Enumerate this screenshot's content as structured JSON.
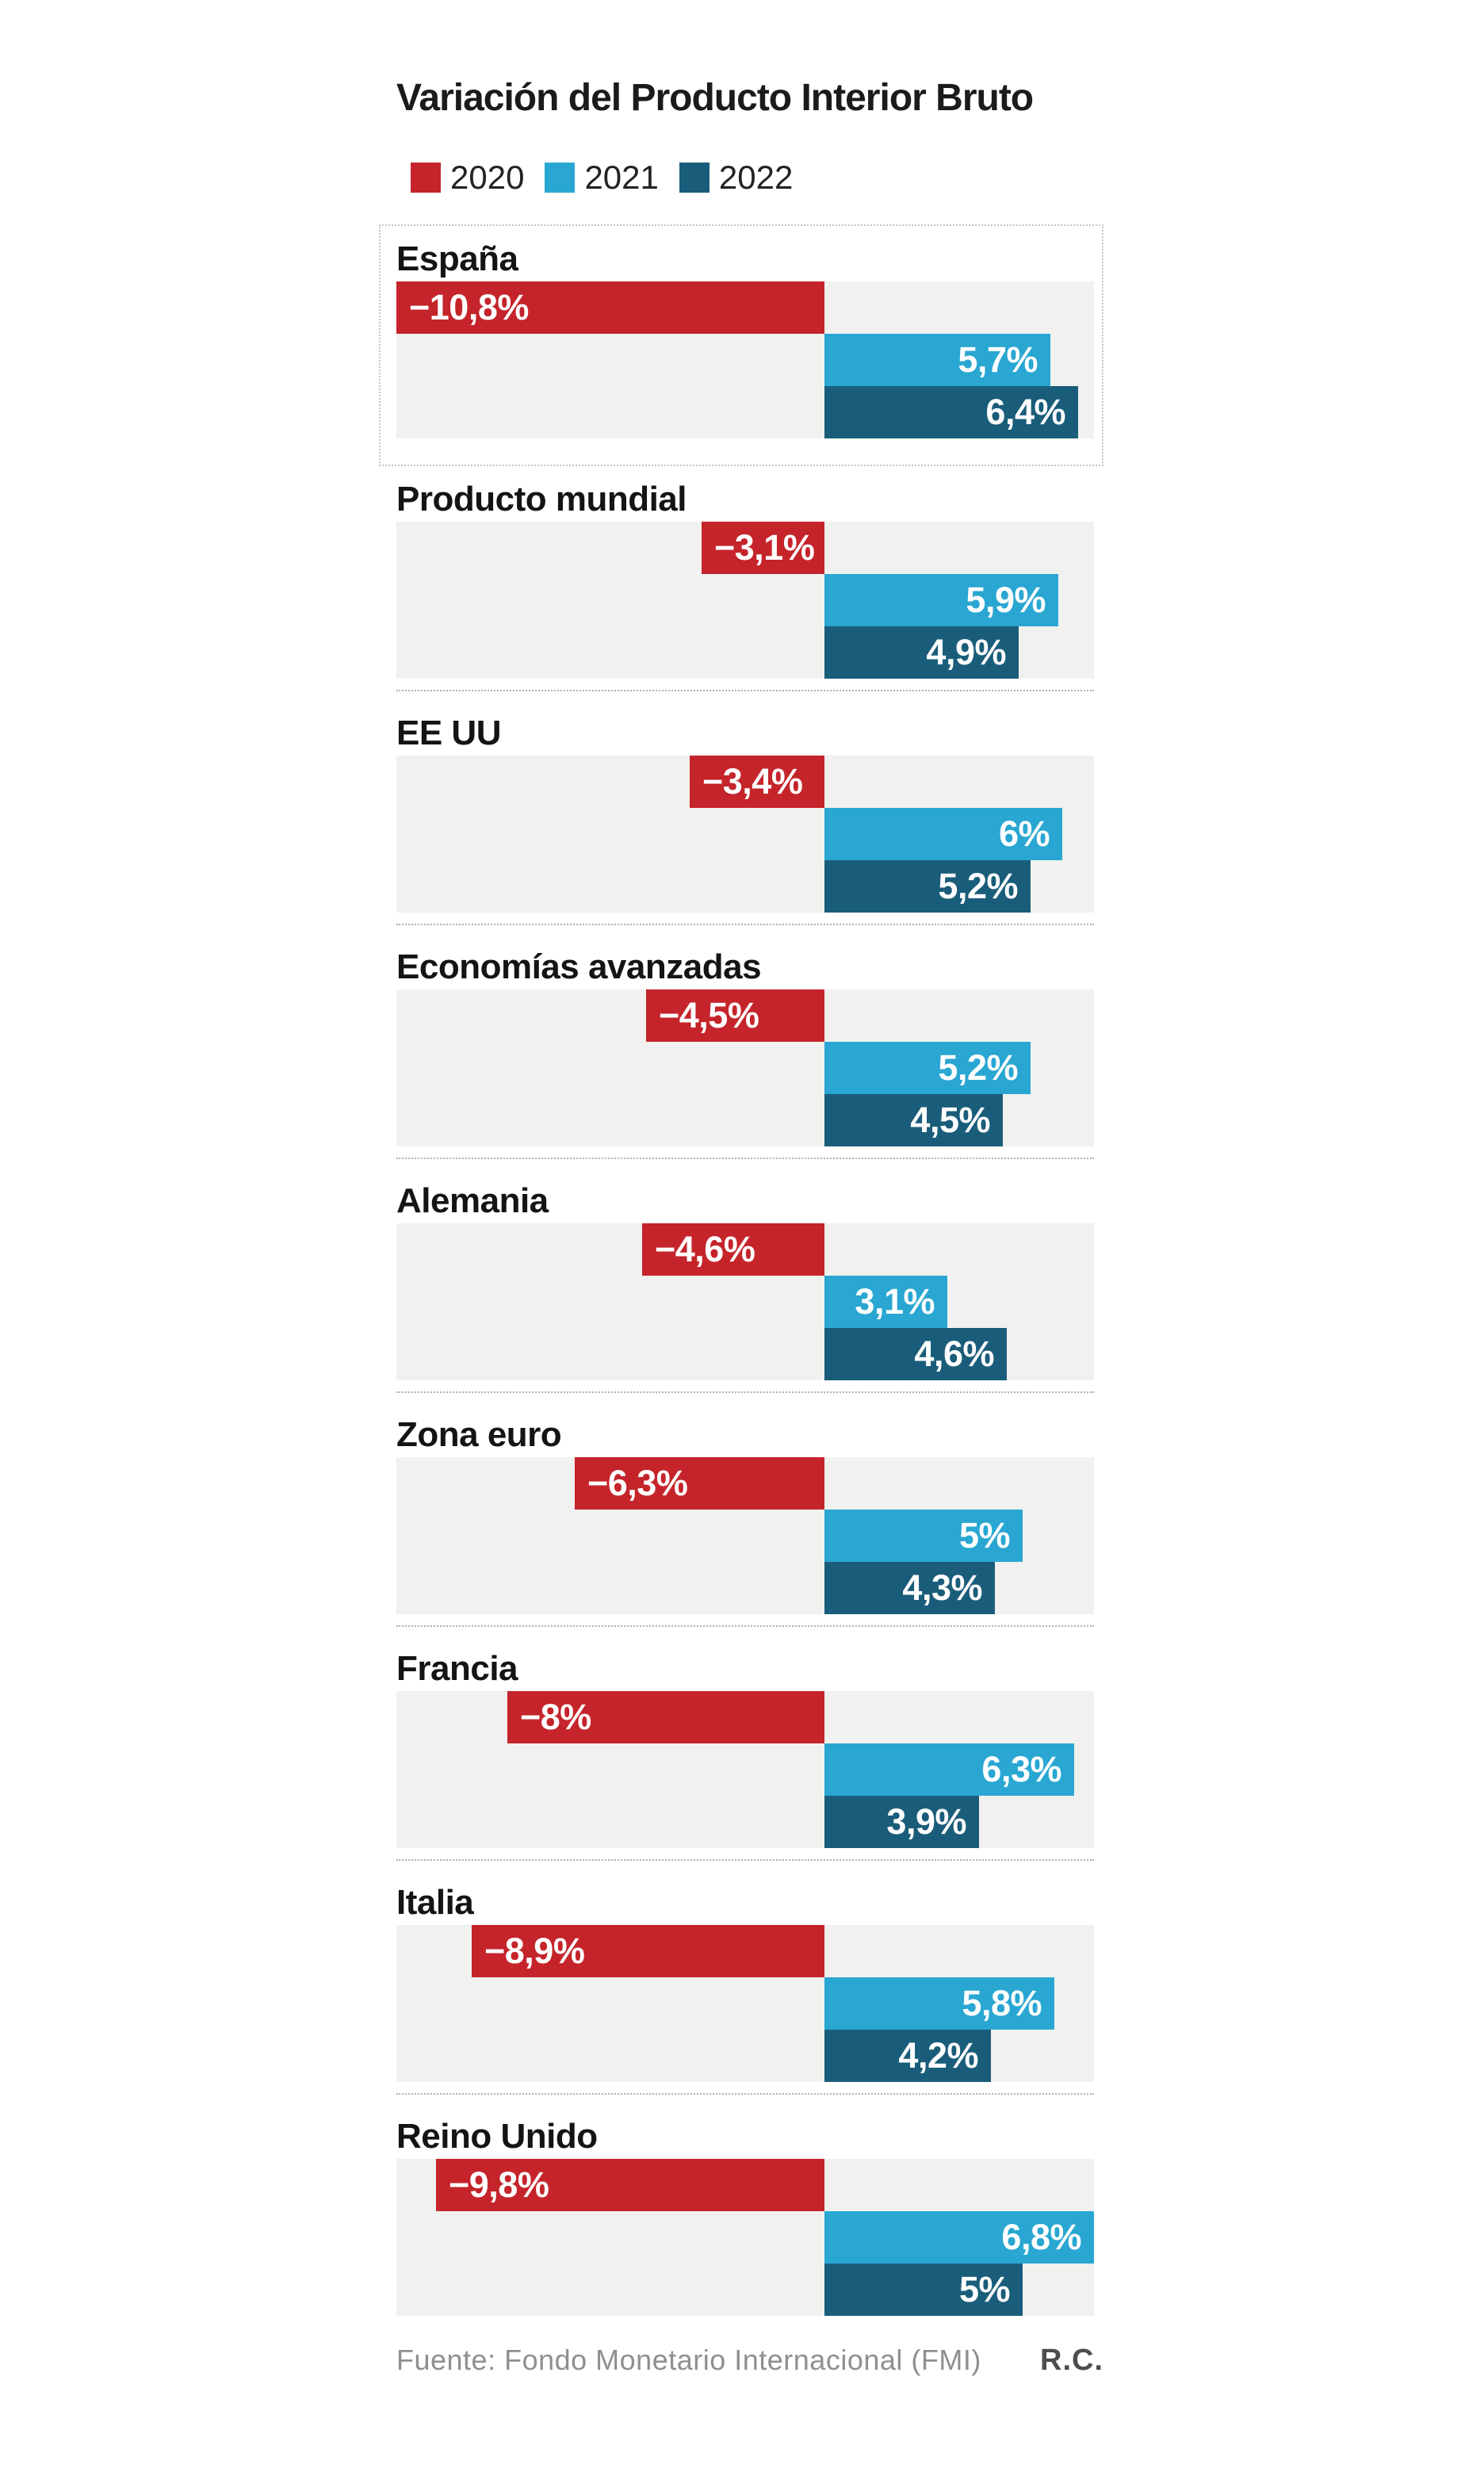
{
  "title": "Variación del Producto Interior Bruto",
  "footer": {
    "source": "Fuente: Fondo Monetario Internacional (FMI)",
    "credit": "R.C."
  },
  "colors": {
    "background": "#ffffff",
    "plot_background": "#f1f1ef",
    "separator": "#b0b0b0",
    "highlight_box_border": "#c4c4c4",
    "bar_label_text": "#ffffff",
    "year_2020": "#c5242b",
    "year_2021": "#29a7d2",
    "year_2022": "#1a5d7a"
  },
  "chart_data": {
    "type": "bar",
    "orientation": "horizontal",
    "title": "Variación del Producto Interior Bruto",
    "unit": "%",
    "xlim": [
      -10.8,
      6.8
    ],
    "grid": false,
    "legend_position": "top",
    "series": [
      "2020",
      "2021",
      "2022"
    ],
    "series_colors": [
      "#c5242b",
      "#29a7d2",
      "#1a5d7a"
    ],
    "groups": [
      {
        "label": "España",
        "highlighted": true,
        "values": [
          -10.8,
          5.7,
          6.4
        ],
        "labels": [
          "−10,8%",
          "5,7%",
          "6,4%"
        ]
      },
      {
        "label": "Producto mundial",
        "highlighted": false,
        "values": [
          -3.1,
          5.9,
          4.9
        ],
        "labels": [
          "−3,1%",
          "5,9%",
          "4,9%"
        ]
      },
      {
        "label": "EE UU",
        "highlighted": false,
        "values": [
          -3.4,
          6.0,
          5.2
        ],
        "labels": [
          "−3,4%",
          "6%",
          "5,2%"
        ]
      },
      {
        "label": "Economías avanzadas",
        "highlighted": false,
        "values": [
          -4.5,
          5.2,
          4.5
        ],
        "labels": [
          "−4,5%",
          "5,2%",
          "4,5%"
        ]
      },
      {
        "label": "Alemania",
        "highlighted": false,
        "values": [
          -4.6,
          3.1,
          4.6
        ],
        "labels": [
          "−4,6%",
          "3,1%",
          "4,6%"
        ]
      },
      {
        "label": "Zona euro",
        "highlighted": false,
        "values": [
          -6.3,
          5.0,
          4.3
        ],
        "labels": [
          "−6,3%",
          "5%",
          "4,3%"
        ]
      },
      {
        "label": "Francia",
        "highlighted": false,
        "values": [
          -8.0,
          6.3,
          3.9
        ],
        "labels": [
          "−8%",
          "6,3%",
          "3,9%"
        ]
      },
      {
        "label": "Italia",
        "highlighted": false,
        "values": [
          -8.9,
          5.8,
          4.2
        ],
        "labels": [
          "−8,9%",
          "5,8%",
          "4,2%"
        ]
      },
      {
        "label": "Reino Unido",
        "highlighted": false,
        "values": [
          -9.8,
          6.8,
          5.0
        ],
        "labels": [
          "−9,8%",
          "6,8%",
          "5%"
        ]
      }
    ]
  }
}
